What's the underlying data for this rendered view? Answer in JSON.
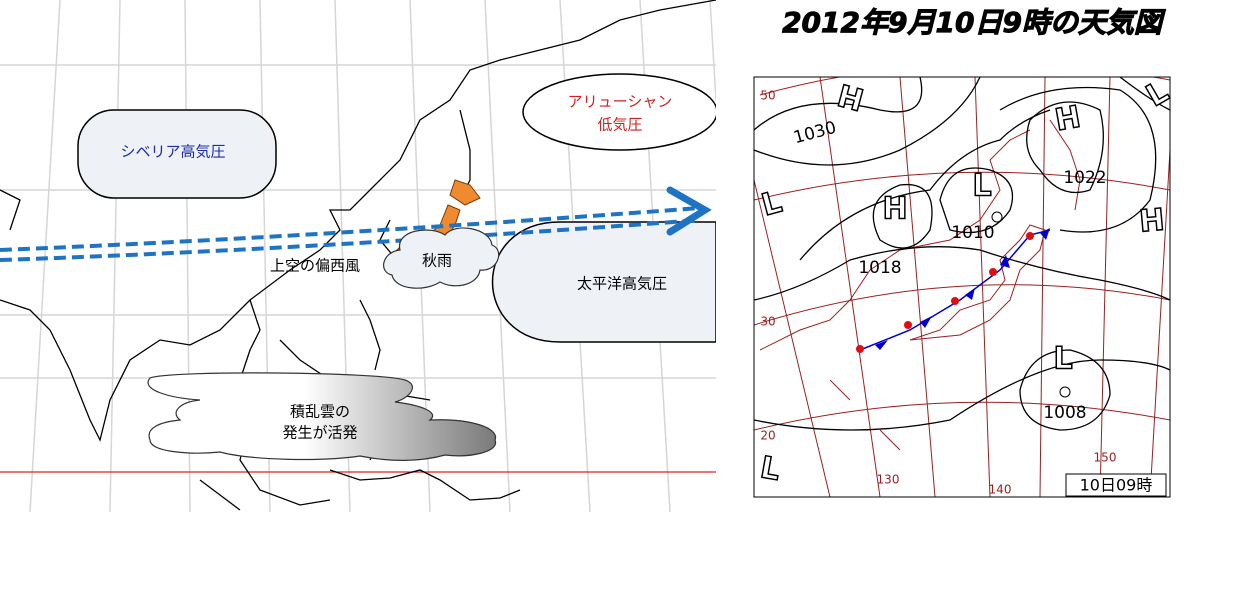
{
  "title": "2012年9月10日9時の天気図",
  "left_map": {
    "siberian_high": "シベリア高気圧",
    "aleutian_low": [
      "アリューシャン",
      "低気圧"
    ],
    "westerlies": "上空の偏西風",
    "autumn_rain": "秋雨",
    "pacific_high": "太平洋高気圧",
    "cumulonimbus": [
      "積乱雲の",
      "発生が活発"
    ]
  },
  "right_map": {
    "pressure_labels": [
      "1030",
      "1022",
      "1010",
      "1018",
      "1008"
    ],
    "high_marks": [
      "H",
      "H",
      "H",
      "H"
    ],
    "low_marks": [
      "L",
      "L",
      "L",
      "L",
      "L"
    ],
    "lat_labels": [
      "50",
      "30",
      "20"
    ],
    "lon_labels": [
      "130",
      "140",
      "150"
    ],
    "timestamp": "10日09時"
  }
}
